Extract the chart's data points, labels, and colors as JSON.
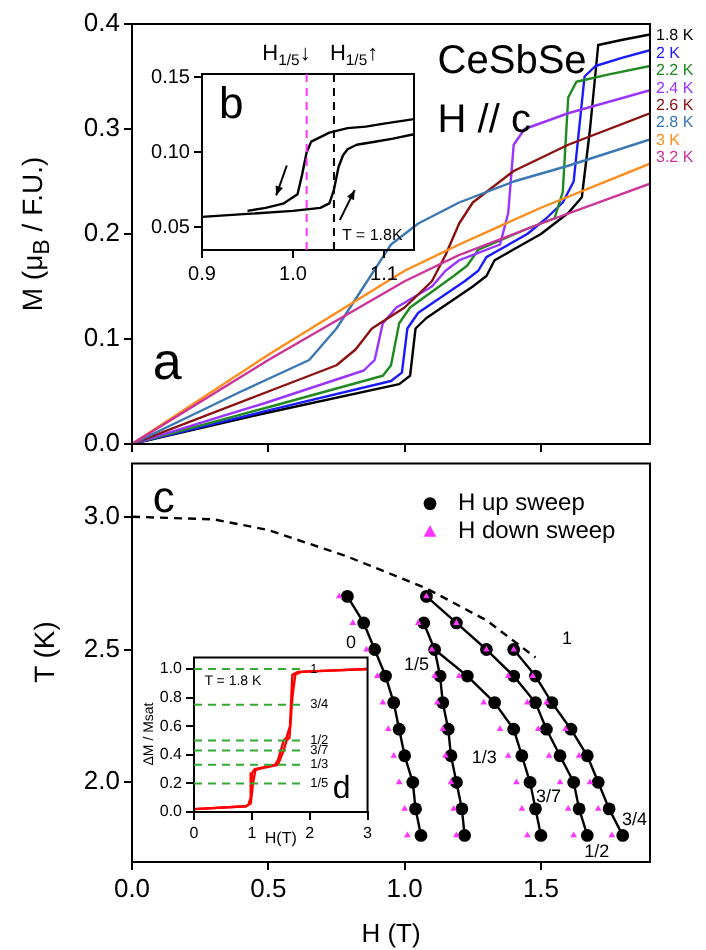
{
  "chart_data": [
    {
      "type": "line",
      "ylabel": "M (μ$_{B}$ / F.U.)",
      "xlim": [
        0,
        1.9
      ],
      "xticks": [
        {
          "value": 0,
          "label": null
        },
        {
          "value": 0.5,
          "label": null
        },
        {
          "value": 1,
          "label": null
        },
        {
          "value": 1.5,
          "label": null
        }
      ],
      "ylim": [
        0,
        0.4
      ],
      "yticks": [
        {
          "value": 0,
          "label": "0.0"
        },
        0.1,
        0.2,
        0.3,
        0.4
      ],
      "tick_labels": "y",
      "legend": "right",
      "marker": "none",
      "annotations": [
        "a",
        "CeSbSe",
        "H // c"
      ],
      "series": [
        {
          "name": "1.8 K",
          "color": "#000000",
          "x": [
            0,
            0.5,
            0.98,
            1.02,
            1.04,
            1.08,
            1.25,
            1.3,
            1.33,
            1.5,
            1.55,
            1.6,
            1.65,
            1.68,
            1.71,
            1.8,
            1.9
          ],
          "values": [
            0,
            0.03,
            0.057,
            0.065,
            0.11,
            0.12,
            0.15,
            0.16,
            0.175,
            0.2,
            0.21,
            0.22,
            0.235,
            0.3,
            0.38,
            0.385,
            0.39
          ]
        },
        {
          "name": "2 K",
          "color": "#1a1aff",
          "x": [
            0,
            0.5,
            0.95,
            0.99,
            1.01,
            1.05,
            1.22,
            1.27,
            1.3,
            1.45,
            1.52,
            1.58,
            1.62,
            1.64,
            1.66,
            1.7,
            1.8,
            1.9
          ],
          "values": [
            0,
            0.032,
            0.06,
            0.068,
            0.11,
            0.125,
            0.155,
            0.165,
            0.178,
            0.2,
            0.215,
            0.23,
            0.25,
            0.3,
            0.35,
            0.36,
            0.368,
            0.375
          ]
        },
        {
          "name": "2.2 K",
          "color": "#1f8a1f",
          "x": [
            0,
            0.5,
            0.92,
            0.95,
            0.98,
            1.02,
            1.18,
            1.23,
            1.27,
            1.45,
            1.55,
            1.58,
            1.6,
            1.63,
            1.75,
            1.9
          ],
          "values": [
            0,
            0.035,
            0.065,
            0.075,
            0.115,
            0.13,
            0.16,
            0.17,
            0.185,
            0.205,
            0.215,
            0.24,
            0.33,
            0.345,
            0.352,
            0.36
          ]
        },
        {
          "name": "2.4 K",
          "color": "#9933ff",
          "x": [
            0,
            0.5,
            0.85,
            0.89,
            0.92,
            0.97,
            1.1,
            1.15,
            1.2,
            1.35,
            1.38,
            1.4,
            1.44,
            1.6,
            1.9
          ],
          "values": [
            0,
            0.04,
            0.07,
            0.08,
            0.115,
            0.13,
            0.15,
            0.165,
            0.175,
            0.19,
            0.22,
            0.285,
            0.3,
            0.315,
            0.337
          ]
        },
        {
          "name": "2.6 K",
          "color": "#8b1010",
          "x": [
            0,
            0.5,
            0.75,
            0.82,
            0.88,
            1.0,
            1.1,
            1.15,
            1.2,
            1.25,
            1.4,
            1.6,
            1.9
          ],
          "values": [
            0,
            0.05,
            0.075,
            0.09,
            0.11,
            0.13,
            0.155,
            0.18,
            0.21,
            0.23,
            0.26,
            0.285,
            0.315
          ]
        },
        {
          "name": "2.8 K",
          "color": "#3a78b5",
          "x": [
            0,
            0.4,
            0.65,
            0.75,
            0.85,
            0.95,
            1.05,
            1.2,
            1.4,
            1.6,
            1.9
          ],
          "values": [
            0,
            0.05,
            0.08,
            0.11,
            0.15,
            0.19,
            0.21,
            0.23,
            0.25,
            0.265,
            0.29
          ]
        },
        {
          "name": "3 K",
          "color": "#ff8c1a",
          "x": [
            0,
            0.5,
            1.0,
            1.2,
            1.5,
            1.9
          ],
          "values": [
            0,
            0.085,
            0.165,
            0.19,
            0.225,
            0.267
          ]
        },
        {
          "name": "3.2 K",
          "color": "#cc3399",
          "x": [
            0,
            0.5,
            1.0,
            1.2,
            1.5,
            1.9
          ],
          "values": [
            0,
            0.08,
            0.155,
            0.18,
            0.21,
            0.248
          ]
        }
      ]
    },
    {
      "type": "line",
      "xlim": [
        0.9,
        1.133
      ],
      "xticks": [
        0.9,
        {
          "value": 1,
          "label": "1.0"
        },
        1.1
      ],
      "ylim": [
        0.035,
        0.152
      ],
      "yticks": [
        0.05,
        {
          "value": 0.1,
          "label": "0.10"
        },
        0.15
      ],
      "marker": "none",
      "annotations": [
        "b",
        "T = 1.8K"
      ],
      "ref_lines": [
        {
          "axis": "x",
          "value": 1.015,
          "label": "H$_{1/5}$↓",
          "color": "#ff33ff",
          "line_style": "dashed"
        },
        {
          "axis": "x",
          "value": 1.045,
          "label": "H$_{1/5}$↑",
          "color": "#000000",
          "line_style": "dashed"
        }
      ],
      "series": [
        {
          "color": "#000000",
          "x": [
            0.9,
            0.95,
            1.0,
            1.03,
            1.04,
            1.045,
            1.05,
            1.055,
            1.06,
            1.07,
            1.09,
            1.11,
            1.133
          ],
          "values": [
            0.057,
            0.059,
            0.061,
            0.063,
            0.066,
            0.075,
            0.09,
            0.098,
            0.102,
            0.105,
            0.107,
            0.109,
            0.112
          ]
        },
        {
          "color": "#000000",
          "x": [
            1.133,
            1.1,
            1.08,
            1.06,
            1.04,
            1.03,
            1.02,
            1.015,
            1.01,
            1.005,
            0.99,
            0.97,
            0.95
          ],
          "values": [
            0.122,
            0.119,
            0.117,
            0.116,
            0.113,
            0.11,
            0.107,
            0.1,
            0.085,
            0.072,
            0.066,
            0.063,
            0.061
          ]
        }
      ]
    },
    {
      "type": "scatter",
      "xlabel": "H (T)",
      "ylabel": "T (K)",
      "xlim": [
        0,
        1.9
      ],
      "xticks": [
        {
          "value": 0,
          "label": "0.0"
        },
        0.5,
        {
          "value": 1,
          "label": "1.0"
        },
        1.5
      ],
      "ylim": [
        1.7,
        3.2
      ],
      "yticks": [
        {
          "value": 2,
          "label": "2.0"
        },
        2.5,
        {
          "value": 3,
          "label": "3.0"
        }
      ],
      "legend": "top right",
      "annotations": [
        "c",
        "0",
        "1/5",
        "1/3",
        "3/7",
        "3/4",
        "1/2",
        "1"
      ],
      "series": [
        {
          "type": "line",
          "color": "#000000",
          "marker": "none",
          "x": [
            0.79,
            0.85,
            0.89,
            0.93,
            0.96,
            0.98,
            1.0,
            1.03,
            1.04,
            1.06
          ],
          "values": [
            2.7,
            2.6,
            2.5,
            2.4,
            2.3,
            2.2,
            2.1,
            2.0,
            1.9,
            1.8
          ]
        },
        {
          "type": "line",
          "color": "#000000",
          "marker": "none",
          "x": [
            1.07,
            1.11,
            1.13,
            1.14,
            1.16,
            1.17,
            1.19,
            1.21,
            1.22
          ],
          "values": [
            2.6,
            2.5,
            2.4,
            2.3,
            2.2,
            2.1,
            2.0,
            1.9,
            1.8
          ]
        },
        {
          "type": "line",
          "color": "#000000",
          "marker": "none",
          "x": [
            1.11,
            1.23,
            1.33,
            1.4,
            1.43,
            1.46,
            1.48,
            1.5
          ],
          "values": [
            2.5,
            2.4,
            2.3,
            2.2,
            2.1,
            2.0,
            1.9,
            1.8
          ]
        },
        {
          "type": "line",
          "color": "#000000",
          "marker": "none",
          "x": [
            1.08,
            1.19,
            1.3,
            1.4,
            1.48,
            1.52,
            1.57,
            1.62,
            1.64,
            1.67
          ],
          "values": [
            2.7,
            2.6,
            2.5,
            2.4,
            2.3,
            2.2,
            2.1,
            2.0,
            1.9,
            1.8
          ]
        },
        {
          "type": "line",
          "color": "#000000",
          "marker": "none",
          "x": [
            1.4,
            1.48,
            1.54,
            1.61,
            1.67,
            1.71,
            1.75,
            1.8
          ],
          "values": [
            2.5,
            2.4,
            2.3,
            2.2,
            2.1,
            2.0,
            1.9,
            1.8
          ]
        },
        {
          "type": "line",
          "color": "#000000",
          "marker": "none",
          "line_style": "dashed",
          "x": [
            0,
            0.3,
            0.5,
            0.79,
            1.08,
            1.3,
            1.48
          ],
          "values": [
            3.0,
            2.99,
            2.95,
            2.85,
            2.73,
            2.61,
            2.47
          ]
        },
        {
          "name": "H up sweep",
          "color": "#000000",
          "marker": "circle",
          "x": [
            0.79,
            0.85,
            0.89,
            0.93,
            0.96,
            0.98,
            1.0,
            1.03,
            1.04,
            1.06,
            1.07,
            1.11,
            1.13,
            1.14,
            1.16,
            1.17,
            1.19,
            1.21,
            1.22,
            1.23,
            1.33,
            1.4,
            1.43,
            1.46,
            1.48,
            1.5,
            1.08,
            1.19,
            1.3,
            1.4,
            1.48,
            1.52,
            1.57,
            1.62,
            1.64,
            1.67,
            1.4,
            1.48,
            1.54,
            1.61,
            1.67,
            1.71,
            1.75,
            1.8
          ],
          "values": [
            2.7,
            2.6,
            2.5,
            2.4,
            2.3,
            2.2,
            2.1,
            2.0,
            1.9,
            1.8,
            2.6,
            2.5,
            2.4,
            2.3,
            2.2,
            2.1,
            2.0,
            1.9,
            1.8,
            2.4,
            2.3,
            2.2,
            2.1,
            2.0,
            1.9,
            1.8,
            2.7,
            2.6,
            2.5,
            2.4,
            2.3,
            2.2,
            2.1,
            2.0,
            1.9,
            1.8,
            2.5,
            2.4,
            2.3,
            2.2,
            2.1,
            2.0,
            1.9,
            1.8
          ]
        },
        {
          "name": "H down sweep",
          "color": "#ff33ff",
          "marker": "triangle",
          "x": [
            0.76,
            0.81,
            0.86,
            0.9,
            0.92,
            0.94,
            0.96,
            0.98,
            1.0,
            1.01,
            1.05,
            1.1,
            1.11,
            1.12,
            1.14,
            1.15,
            1.17,
            1.18,
            1.19,
            1.2,
            1.29,
            1.35,
            1.38,
            1.41,
            1.43,
            1.45,
            1.08,
            1.19,
            1.3,
            1.38,
            1.45,
            1.49,
            1.53,
            1.57,
            1.6,
            1.62,
            1.4,
            1.47,
            1.52,
            1.59,
            1.64,
            1.68,
            1.71,
            1.76
          ],
          "values": [
            2.7,
            2.6,
            2.5,
            2.4,
            2.3,
            2.2,
            2.1,
            2.0,
            1.9,
            1.8,
            2.6,
            2.5,
            2.4,
            2.3,
            2.2,
            2.1,
            2.0,
            1.9,
            1.8,
            2.4,
            2.3,
            2.2,
            2.1,
            2.0,
            1.9,
            1.8,
            2.7,
            2.6,
            2.5,
            2.4,
            2.3,
            2.2,
            2.1,
            2.0,
            1.9,
            1.8,
            2.5,
            2.4,
            2.3,
            2.2,
            2.1,
            2.0,
            1.9,
            1.8
          ]
        }
      ]
    },
    {
      "type": "line",
      "xlabel": "H(T)",
      "ylabel": "ΔM / Msat",
      "xlim": [
        0,
        3
      ],
      "xticks": [
        0,
        1,
        2,
        3
      ],
      "ylim": [
        0,
        1.08
      ],
      "yticks": [
        {
          "value": 0,
          "label": "0.0"
        },
        0.2,
        0.4,
        0.6,
        0.8,
        {
          "value": 1,
          "label": "1.0"
        }
      ],
      "marker": "none",
      "annotations": [
        "T = 1.8 K",
        "d",
        "1",
        "3/4",
        "1/2",
        "3/7",
        "1/3",
        "1/5"
      ],
      "ref_lines": [
        {
          "axis": "y",
          "value": 1,
          "color": "#33aa33",
          "line_style": "dashed"
        },
        {
          "axis": "y",
          "value": 0.75,
          "color": "#33aa33",
          "line_style": "dashed"
        },
        {
          "axis": "y",
          "value": 0.5,
          "color": "#33aa33",
          "line_style": "dashed"
        },
        {
          "axis": "y",
          "value": 0.43,
          "color": "#33aa33",
          "line_style": "dashed"
        },
        {
          "axis": "y",
          "value": 0.33,
          "color": "#33aa33",
          "line_style": "dashed"
        },
        {
          "axis": "y",
          "value": 0.2,
          "color": "#33aa33",
          "line_style": "dashed"
        }
      ],
      "series": [
        {
          "color": "#ff0000",
          "x": [
            0,
            0.9,
            0.98,
            1.02,
            1.06,
            1.1,
            1.45,
            1.5,
            1.55,
            1.6,
            1.65,
            1.7,
            1.75,
            1.85,
            3
          ],
          "values": [
            0.02,
            0.04,
            0.06,
            0.2,
            0.29,
            0.3,
            0.33,
            0.38,
            0.43,
            0.5,
            0.52,
            0.8,
            0.96,
            0.98,
            1.0
          ]
        },
        {
          "color": "#ff0000",
          "x": [
            3,
            1.8,
            1.7,
            1.66,
            1.6,
            1.55,
            1.5,
            1.45,
            1.4,
            1.05,
            1.0,
            0.98,
            0.94,
            0.9,
            0
          ],
          "values": [
            1.0,
            0.98,
            0.96,
            0.6,
            0.52,
            0.5,
            0.43,
            0.36,
            0.33,
            0.3,
            0.27,
            0.1,
            0.05,
            0.04,
            0.02
          ]
        }
      ]
    }
  ]
}
